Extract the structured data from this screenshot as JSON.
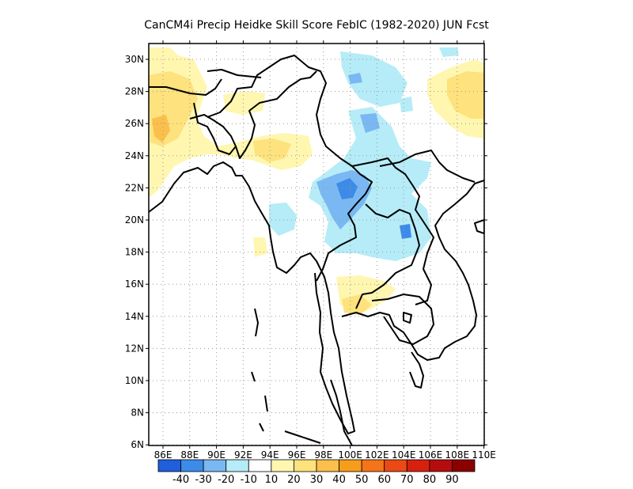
{
  "title": "CanCM4i Precip Heidke Skill Score FebIC (1982-2020) JUN Fcst",
  "lat_labels": [
    "30N",
    "28N",
    "26N",
    "24N",
    "22N",
    "20N",
    "18N",
    "16N",
    "14N",
    "12N",
    "10N",
    "8N",
    "6N"
  ],
  "lon_labels": [
    "86E",
    "88E",
    "90E",
    "92E",
    "94E",
    "96E",
    "98E",
    "100E",
    "102E",
    "104E",
    "106E",
    "108E",
    "110E"
  ],
  "colorbar": {
    "labels": [
      "-40",
      "-30",
      "-20",
      "-10",
      "10",
      "20",
      "30",
      "40",
      "50",
      "60",
      "70",
      "80",
      "90"
    ],
    "colors": [
      "#1f5fdc",
      "#3d8be8",
      "#79b8f2",
      "#b5ecf7",
      "#ffffff",
      "#fff6b0",
      "#fde27d",
      "#fbbf4b",
      "#f89c1c",
      "#f5741a",
      "#eb4a15",
      "#d8200f",
      "#b50d0d",
      "#8c0000"
    ]
  },
  "map_colors": {
    "ocean_land_background": "#ffffff",
    "coastline": "#000000",
    "grid": "#9a9a9a"
  }
}
